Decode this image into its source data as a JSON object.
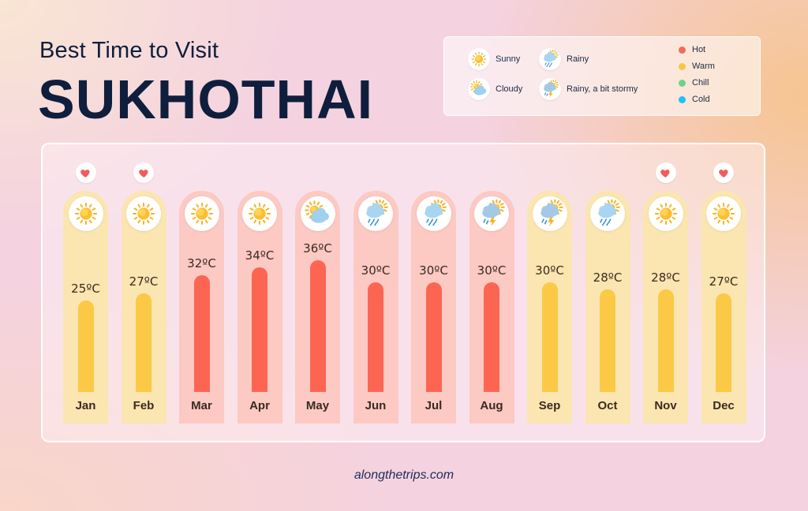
{
  "header": {
    "subtitle": "Best Time to Visit",
    "title": "SUKHOTHAI"
  },
  "legend": {
    "weather": [
      {
        "label": "Sunny",
        "icon": "sunny-icon"
      },
      {
        "label": "Cloudy",
        "icon": "cloudy-icon"
      },
      {
        "label": "Rainy",
        "icon": "rainy-icon"
      },
      {
        "label": "Rainy, a bit stormy",
        "icon": "stormy-icon"
      }
    ],
    "temperature": [
      {
        "label": "Hot",
        "color": "#f26b57"
      },
      {
        "label": "Warm",
        "color": "#f7c744"
      },
      {
        "label": "Chill",
        "color": "#6fd28a"
      },
      {
        "label": "Cold",
        "color": "#1ec3f0"
      }
    ]
  },
  "chart_data": {
    "type": "bar",
    "categories": [
      "Jan",
      "Feb",
      "Mar",
      "Apr",
      "May",
      "Jun",
      "Jul",
      "Aug",
      "Sep",
      "Oct",
      "Nov",
      "Dec"
    ],
    "values": [
      25,
      27,
      32,
      34,
      36,
      30,
      30,
      30,
      30,
      28,
      28,
      27
    ],
    "value_labels": [
      "25ºC",
      "27ºC",
      "32ºC",
      "34ºC",
      "36ºC",
      "30ºC",
      "30ºC",
      "30ºC",
      "30ºC",
      "28ºC",
      "28ºC",
      "27ºC"
    ],
    "category_level": [
      "Warm",
      "Warm",
      "Hot",
      "Hot",
      "Hot",
      "Hot",
      "Hot",
      "Hot",
      "Warm",
      "Warm",
      "Warm",
      "Warm"
    ],
    "weather": [
      "Sunny",
      "Sunny",
      "Sunny",
      "Sunny",
      "Cloudy",
      "Rainy",
      "Rainy",
      "Rainy, a bit stormy",
      "Rainy, a bit stormy",
      "Rainy",
      "Sunny",
      "Sunny"
    ],
    "recommended": [
      true,
      true,
      false,
      false,
      false,
      false,
      false,
      false,
      false,
      false,
      true,
      true
    ],
    "colors": {
      "hot_bar": "#fd6553",
      "hot_bg": "#fcc9c3",
      "warm_bar": "#fbc946",
      "warm_bg": "#fbe5b0",
      "heart": "#f15b5b"
    }
  },
  "footer": {
    "site": "alongthetrips.com"
  }
}
